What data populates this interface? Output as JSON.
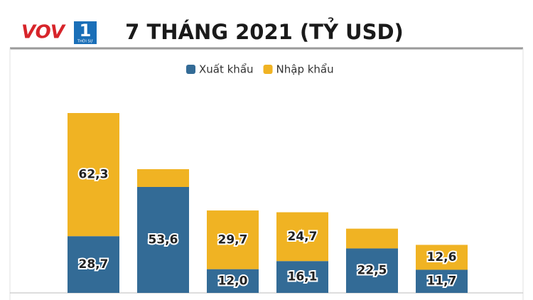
{
  "logo": {
    "text": "VOV",
    "badge": "1",
    "sub": "THỜI SỰ"
  },
  "chart_data": {
    "type": "stacked-bar",
    "title": "7 THÁNG 2021 (TỶ USD)",
    "categories": [
      null,
      null,
      null,
      null,
      null,
      null
    ],
    "legend": "top",
    "series": [
      {
        "name": "Xuất khẩu",
        "color": "#336b96",
        "values": [
          28.7,
          53.6,
          12.0,
          16.1,
          22.5,
          11.7
        ],
        "value_labels": [
          "28,7",
          "53,6",
          "12,0",
          "16,1",
          "22,5",
          "11,7"
        ]
      },
      {
        "name": "Nhập khẩu",
        "color": "#f0b323",
        "values": [
          62.3,
          9.0,
          29.7,
          24.7,
          10.0,
          12.6
        ],
        "value_labels": [
          "62,3",
          null,
          "29,7",
          "24,7",
          null,
          "12,6"
        ]
      }
    ]
  }
}
